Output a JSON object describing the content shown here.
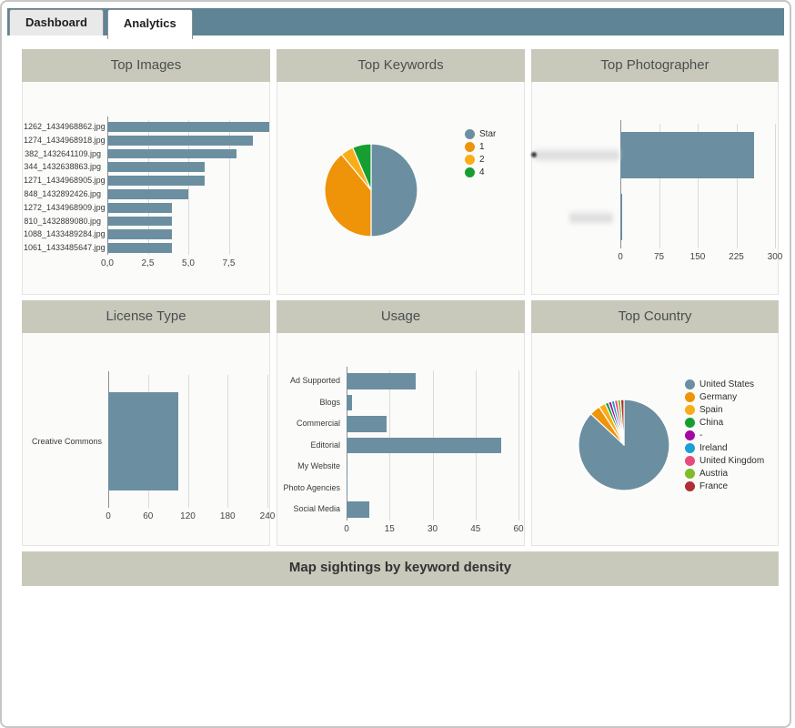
{
  "tabs": [
    {
      "label": "Dashboard",
      "active": false
    },
    {
      "label": "Analytics",
      "active": true
    }
  ],
  "colors": {
    "band": "#5e8496",
    "bar": "#6c8ea1",
    "panel_header_bg": "#c8c9bb",
    "gridline": "#dbdbd6",
    "axis": "#8f8f8f"
  },
  "chart_data": [
    {
      "type": "bar",
      "orientation": "horizontal",
      "title": "Top Images",
      "categories": [
        "1262_1434968862.jpg",
        "1274_1434968918.jpg",
        "382_1432641109.jpg",
        "344_1432638863.jpg",
        "1271_1434968905.jpg",
        "848_1432892426.jpg",
        "1272_1434968909.jpg",
        "810_1432889080.jpg",
        "1088_1433489284.jpg",
        "1061_1433485647.jpg"
      ],
      "values": [
        10,
        9,
        8,
        6,
        6,
        5,
        4,
        4,
        4,
        4
      ],
      "xlim": [
        0,
        10
      ],
      "ticks": [
        0,
        2.5,
        5,
        7.5
      ],
      "tick_labels": [
        "0,0",
        "2,5",
        "5,0",
        "7,5"
      ],
      "xlabel": "",
      "ylabel": "",
      "grid": true
    },
    {
      "type": "pie",
      "title": "Top Keywords",
      "labels": [
        "Star",
        "1",
        "2",
        "4"
      ],
      "values": [
        50,
        39,
        4.5,
        6.5
      ],
      "colors": [
        "#6c8ea1",
        "#ef9309",
        "#fbad19",
        "#169e33"
      ],
      "legend_position": "right"
    },
    {
      "type": "bar",
      "orientation": "horizontal",
      "title": "Top Photographer",
      "categories": [
        "",
        ""
      ],
      "labels_blurred": true,
      "values": [
        260,
        3
      ],
      "xlim": [
        0,
        300
      ],
      "ticks": [
        0,
        75,
        150,
        225,
        300
      ],
      "tick_labels": [
        "0",
        "75",
        "150",
        "225",
        "300"
      ],
      "xlabel": "",
      "ylabel": "",
      "grid": true
    },
    {
      "type": "bar",
      "orientation": "horizontal",
      "title": "License Type",
      "categories": [
        "Creative Commons"
      ],
      "values": [
        105
      ],
      "xlim": [
        0,
        240
      ],
      "ticks": [
        0,
        60,
        120,
        180,
        240
      ],
      "tick_labels": [
        "0",
        "60",
        "120",
        "180",
        "240"
      ],
      "xlabel": "",
      "ylabel": "",
      "grid": true
    },
    {
      "type": "bar",
      "orientation": "horizontal",
      "title": "Usage",
      "categories": [
        "Ad Supported",
        "Blogs",
        "Commercial",
        "Editorial",
        "My Website",
        "Photo Agencies",
        "Social Media"
      ],
      "values": [
        24,
        2,
        14,
        54,
        0.3,
        0.2,
        8
      ],
      "xlim": [
        0,
        60
      ],
      "ticks": [
        0,
        15,
        30,
        45,
        60
      ],
      "tick_labels": [
        "0",
        "15",
        "30",
        "45",
        "60"
      ],
      "xlabel": "",
      "ylabel": "",
      "grid": true
    },
    {
      "type": "pie",
      "title": "Top Country",
      "labels": [
        "United States",
        "Germany",
        "Spain",
        "China",
        "-",
        "Ireland",
        "United Kingdom",
        "Austria",
        "France"
      ],
      "values": [
        87,
        3.8,
        2.4,
        1.2,
        1.1,
        1.1,
        1.1,
        1.1,
        1.2
      ],
      "colors": [
        "#6c8ea1",
        "#ef9309",
        "#fbad19",
        "#169e33",
        "#a30aa3",
        "#1ba0d3",
        "#e84b80",
        "#7fbc2a",
        "#ae2f35"
      ],
      "legend_position": "right"
    }
  ],
  "map_section": {
    "title": "Map sightings by keyword density"
  }
}
